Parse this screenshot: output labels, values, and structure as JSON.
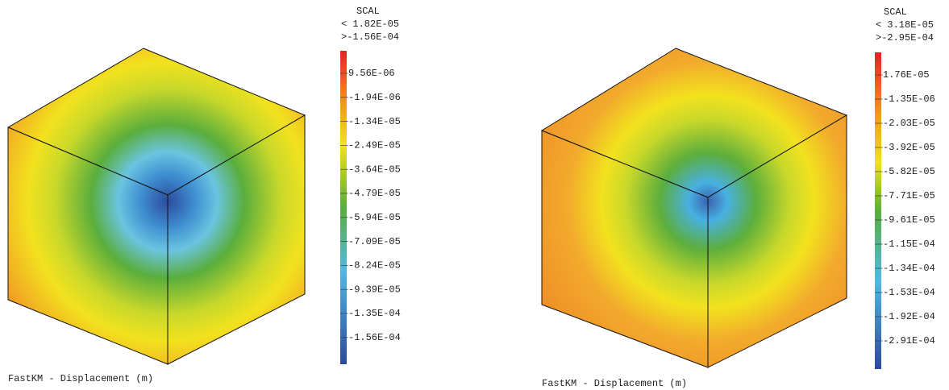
{
  "panels": [
    {
      "legend_title": "SCAL",
      "legend_max": "< 1.82E-05",
      "legend_min": ">-1.56E-04",
      "legend_labels": [
        "9.56E-06",
        "-1.94E-06",
        "-1.34E-05",
        "-2.49E-05",
        "-3.64E-05",
        "-4.79E-05",
        "-5.94E-05",
        "-7.09E-05",
        "-8.24E-05",
        "-9.39E-05",
        "-1.35E-04",
        "-1.56E-04"
      ],
      "caption": "FastKM - Displacement (m)"
    },
    {
      "legend_title": "SCAL",
      "legend_max": "< 3.18E-05",
      "legend_min": ">-2.95E-04",
      "legend_labels": [
        "1.76E-05",
        "-1.35E-06",
        "-2.03E-05",
        "-3.92E-05",
        "-5.82E-05",
        "-7.71E-05",
        "-9.61E-05",
        "-1.15E-04",
        "-1.34E-04",
        "-1.53E-04",
        "-1.92E-04",
        "-2.91E-04"
      ],
      "caption": "FastKM - Displacement (m)"
    }
  ]
}
